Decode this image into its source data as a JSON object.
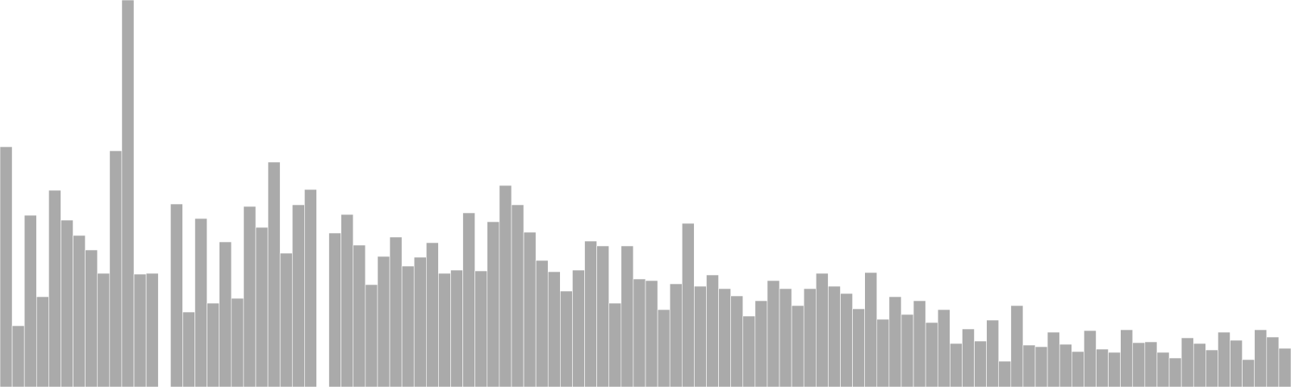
{
  "chart_data": {
    "type": "bar",
    "title": "",
    "xlabel": "",
    "ylabel": "",
    "ylim": [
      0,
      480
    ],
    "grid": false,
    "legend": "none",
    "bar_color": "#aaaaaa",
    "values": [
      298,
      76,
      213,
      112,
      244,
      207,
      188,
      170,
      141,
      293,
      480,
      140,
      141,
      null,
      227,
      93,
      209,
      104,
      180,
      110,
      224,
      198,
      279,
      166,
      226,
      245,
      null,
      191,
      214,
      176,
      127,
      162,
      186,
      150,
      161,
      179,
      141,
      145,
      216,
      144,
      205,
      250,
      226,
      192,
      157,
      143,
      119,
      145,
      181,
      175,
      104,
      175,
      134,
      132,
      96,
      128,
      203,
      125,
      139,
      122,
      113,
      88,
      107,
      132,
      122,
      101,
      122,
      141,
      125,
      116,
      97,
      142,
      84,
      112,
      90,
      107,
      80,
      96,
      54,
      72,
      57,
      83,
      32,
      101,
      52,
      50,
      68,
      53,
      44,
      70,
      47,
      43,
      71,
      55,
      56,
      43,
      36,
      61,
      54,
      46,
      68,
      58,
      34,
      71,
      62,
      48
    ]
  }
}
